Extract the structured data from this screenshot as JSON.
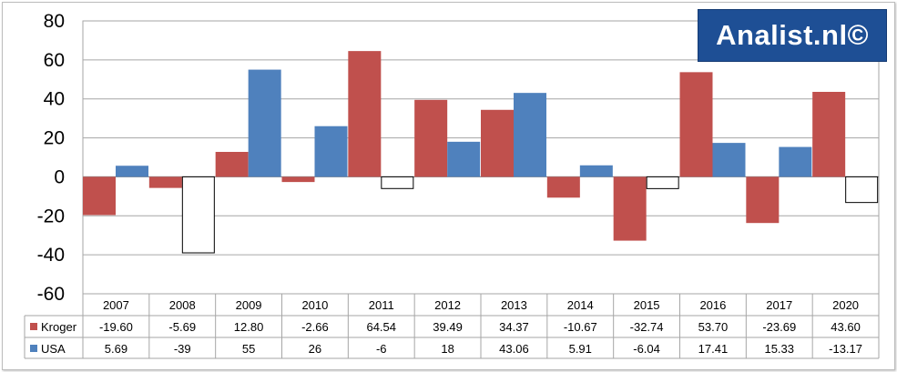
{
  "watermark": {
    "text": "Analist.nl©"
  },
  "colors": {
    "kroger": "#c0504d",
    "usa": "#4f81bd",
    "negative_usa_fill": "#ffffff",
    "grid": "#a6a6a6"
  },
  "chart_data": {
    "type": "bar",
    "categories": [
      "2007",
      "2008",
      "2009",
      "2010",
      "2011",
      "2012",
      "2013",
      "2014",
      "2015",
      "2016",
      "2017",
      "2020"
    ],
    "series": [
      {
        "name": "Kroger",
        "values": [
          -19.6,
          -5.69,
          12.8,
          -2.66,
          64.54,
          39.49,
          34.37,
          -10.67,
          -32.74,
          53.7,
          -23.69,
          43.6
        ],
        "labels": [
          "-19.60",
          "-5.69",
          "12.80",
          "-2.66",
          "64.54",
          "39.49",
          "34.37",
          "-10.67",
          "-32.74",
          "53.70",
          "-23.69",
          "43.60"
        ]
      },
      {
        "name": "USA",
        "values": [
          5.69,
          -39,
          55,
          26,
          -6,
          18,
          43.06,
          5.91,
          -6.04,
          17.41,
          15.33,
          -13.17
        ],
        "labels": [
          "5.69",
          "-39",
          "55",
          "26",
          "-6",
          "18",
          "43.06",
          "5.91",
          "-6.04",
          "17.41",
          "15.33",
          "-13.17"
        ]
      }
    ],
    "yticks": [
      "80",
      "60",
      "40",
      "20",
      "0",
      "-20",
      "-40",
      "-60"
    ],
    "ylim": [
      -60,
      80
    ],
    "grid": true,
    "legend": "data-table"
  }
}
